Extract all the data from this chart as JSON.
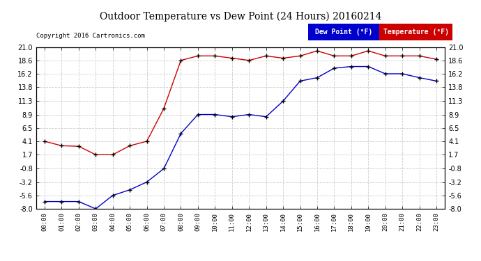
{
  "title": "Outdoor Temperature vs Dew Point (24 Hours) 20160214",
  "copyright": "Copyright 2016 Cartronics.com",
  "x_labels": [
    "00:00",
    "01:00",
    "02:00",
    "03:00",
    "04:00",
    "05:00",
    "06:00",
    "07:00",
    "08:00",
    "09:00",
    "10:00",
    "11:00",
    "12:00",
    "13:00",
    "14:00",
    "15:00",
    "16:00",
    "17:00",
    "18:00",
    "19:00",
    "20:00",
    "21:00",
    "22:00",
    "23:00"
  ],
  "temperature": [
    4.1,
    3.3,
    3.2,
    1.7,
    1.7,
    3.3,
    4.1,
    10.0,
    18.6,
    19.4,
    19.4,
    19.0,
    18.6,
    19.4,
    19.0,
    19.4,
    20.3,
    19.4,
    19.4,
    20.3,
    19.4,
    19.4,
    19.4,
    18.8
  ],
  "dew_point": [
    -6.7,
    -6.7,
    -6.7,
    -8.0,
    -5.6,
    -4.6,
    -3.2,
    -0.8,
    5.5,
    8.9,
    8.9,
    8.5,
    8.9,
    8.5,
    11.3,
    14.9,
    15.5,
    17.2,
    17.5,
    17.5,
    16.2,
    16.2,
    15.5,
    14.9
  ],
  "temp_color": "#cc0000",
  "dew_color": "#0000cc",
  "marker_color": "#000000",
  "y_ticks": [
    -8.0,
    -5.6,
    -3.2,
    -0.8,
    1.7,
    4.1,
    6.5,
    8.9,
    11.3,
    13.8,
    16.2,
    18.6,
    21.0
  ],
  "ylim_min": -8.0,
  "ylim_max": 21.0,
  "grid_color": "#cccccc",
  "bg_color": "#ffffff",
  "legend_dew_bg": "#0000cc",
  "legend_temp_bg": "#cc0000",
  "legend_text_color": "#ffffff"
}
